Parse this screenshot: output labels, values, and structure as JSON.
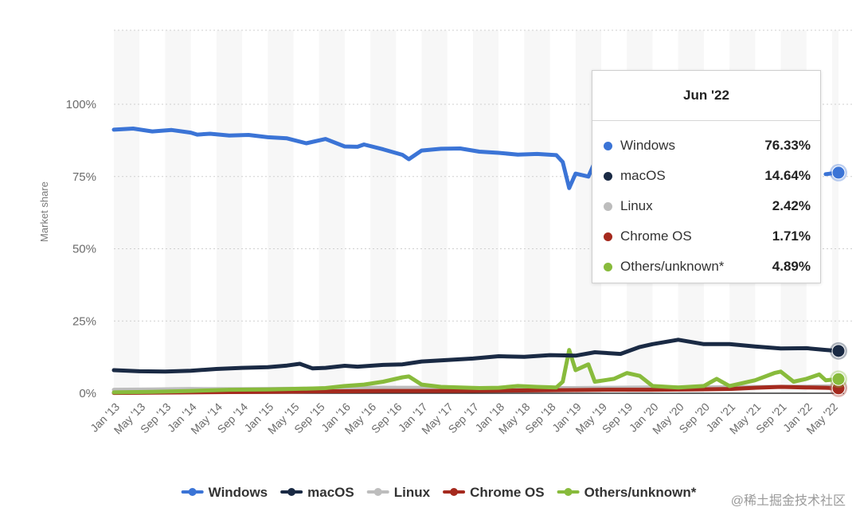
{
  "chart_data": {
    "type": "line",
    "ylabel": "Market share",
    "ylim": [
      0,
      100
    ],
    "y_ticks": [
      "0%",
      "25%",
      "50%",
      "75%",
      "100%"
    ],
    "x_tick_labels": [
      "Jan '13",
      "May '13",
      "Sep '13",
      "Jan '14",
      "May '14",
      "Sep '14",
      "Jan '15",
      "May '15",
      "Sep '15",
      "Jan '16",
      "May '16",
      "Sep '16",
      "Jan '17",
      "May '17",
      "Sep '17",
      "Jan '18",
      "May '18",
      "Sep '18",
      "Jan '19",
      "May '19",
      "Sep '19",
      "Jan '20",
      "May '20",
      "Sep '20",
      "Jan '21",
      "May '21",
      "Sep '21",
      "Jan '22",
      "May '22"
    ],
    "x_start": "Jan 2013",
    "x_end": "Jun 2022",
    "grid": true,
    "legend_position": "bottom",
    "series": [
      {
        "name": "Windows",
        "color": "#3b74d6",
        "points": [
          [
            0,
            91.2
          ],
          [
            3,
            91.6
          ],
          [
            6,
            90.6
          ],
          [
            9,
            91.1
          ],
          [
            12,
            90.2
          ],
          [
            13,
            89.5
          ],
          [
            15,
            89.8
          ],
          [
            18,
            89.2
          ],
          [
            21,
            89.4
          ],
          [
            24,
            88.6
          ],
          [
            27,
            88.2
          ],
          [
            30,
            86.5
          ],
          [
            33,
            88.0
          ],
          [
            36,
            85.4
          ],
          [
            38,
            85.3
          ],
          [
            39,
            86.1
          ],
          [
            42,
            84.4
          ],
          [
            45,
            82.5
          ],
          [
            46,
            81.0
          ],
          [
            48,
            84.0
          ],
          [
            51,
            84.6
          ],
          [
            54,
            84.7
          ],
          [
            57,
            83.6
          ],
          [
            60,
            83.2
          ],
          [
            63,
            82.6
          ],
          [
            66,
            82.8
          ],
          [
            69,
            82.4
          ],
          [
            70,
            80.0
          ],
          [
            71,
            71.0
          ],
          [
            72,
            76.0
          ],
          [
            74,
            75.0
          ],
          [
            75,
            80.0
          ]
        ],
        "points_end": [
          [
            111,
            75.8
          ],
          [
            113,
            76.33
          ]
        ]
      },
      {
        "name": "macOS",
        "color": "#1a2a44",
        "points": [
          [
            0,
            8.0
          ],
          [
            4,
            7.6
          ],
          [
            8,
            7.5
          ],
          [
            12,
            7.8
          ],
          [
            16,
            8.4
          ],
          [
            20,
            8.8
          ],
          [
            24,
            9.0
          ],
          [
            27,
            9.6
          ],
          [
            29,
            10.2
          ],
          [
            31,
            8.6
          ],
          [
            33,
            8.8
          ],
          [
            36,
            9.5
          ],
          [
            38,
            9.2
          ],
          [
            42,
            9.8
          ],
          [
            45,
            10.0
          ],
          [
            48,
            11.0
          ],
          [
            52,
            11.5
          ],
          [
            56,
            12.0
          ],
          [
            60,
            12.8
          ],
          [
            64,
            12.6
          ],
          [
            68,
            13.2
          ],
          [
            72,
            13.0
          ],
          [
            75,
            14.2
          ],
          [
            79,
            13.6
          ],
          [
            82,
            16.0
          ],
          [
            84,
            17.0
          ],
          [
            88,
            18.5
          ],
          [
            92,
            17.0
          ],
          [
            96,
            17.0
          ],
          [
            100,
            16.2
          ],
          [
            104,
            15.5
          ],
          [
            108,
            15.6
          ],
          [
            111,
            15.0
          ],
          [
            113,
            14.64
          ]
        ]
      },
      {
        "name": "Linux",
        "color": "#bdbdbd",
        "points": [
          [
            0,
            1.2
          ],
          [
            6,
            1.3
          ],
          [
            12,
            1.5
          ],
          [
            18,
            1.4
          ],
          [
            24,
            1.5
          ],
          [
            30,
            1.6
          ],
          [
            36,
            1.8
          ],
          [
            42,
            1.9
          ],
          [
            48,
            1.9
          ],
          [
            54,
            1.8
          ],
          [
            60,
            1.7
          ],
          [
            66,
            1.8
          ],
          [
            72,
            1.8
          ],
          [
            78,
            1.9
          ],
          [
            84,
            2.0
          ],
          [
            90,
            2.0
          ],
          [
            96,
            2.1
          ],
          [
            102,
            2.2
          ],
          [
            108,
            2.3
          ],
          [
            113,
            2.42
          ]
        ]
      },
      {
        "name": "Chrome OS",
        "color": "#a52a1e",
        "points": [
          [
            0,
            0.1
          ],
          [
            6,
            0.2
          ],
          [
            12,
            0.3
          ],
          [
            18,
            0.4
          ],
          [
            24,
            0.5
          ],
          [
            30,
            0.6
          ],
          [
            36,
            0.7
          ],
          [
            42,
            0.8
          ],
          [
            48,
            0.8
          ],
          [
            54,
            0.8
          ],
          [
            60,
            0.9
          ],
          [
            66,
            1.0
          ],
          [
            72,
            1.1
          ],
          [
            78,
            1.2
          ],
          [
            84,
            1.2
          ],
          [
            90,
            1.3
          ],
          [
            96,
            1.5
          ],
          [
            100,
            1.9
          ],
          [
            104,
            2.2
          ],
          [
            108,
            2.0
          ],
          [
            111,
            1.9
          ],
          [
            113,
            1.71
          ]
        ]
      },
      {
        "name": "Others/unknown*",
        "color": "#88bb3c",
        "points": [
          [
            0,
            0.3
          ],
          [
            6,
            0.5
          ],
          [
            12,
            0.8
          ],
          [
            15,
            1.0
          ],
          [
            18,
            1.2
          ],
          [
            24,
            1.3
          ],
          [
            30,
            1.6
          ],
          [
            33,
            1.8
          ],
          [
            36,
            2.5
          ],
          [
            39,
            3.0
          ],
          [
            42,
            4.0
          ],
          [
            45,
            5.5
          ],
          [
            46,
            5.8
          ],
          [
            48,
            3.0
          ],
          [
            51,
            2.2
          ],
          [
            54,
            2.0
          ],
          [
            57,
            1.8
          ],
          [
            60,
            1.9
          ],
          [
            63,
            2.5
          ],
          [
            66,
            2.2
          ],
          [
            69,
            2.0
          ],
          [
            70,
            4.0
          ],
          [
            71,
            15.0
          ],
          [
            72,
            8.0
          ],
          [
            73,
            9.0
          ],
          [
            74,
            10.0
          ],
          [
            75,
            4.0
          ],
          [
            78,
            5.0
          ],
          [
            80,
            7.0
          ],
          [
            82,
            6.0
          ],
          [
            84,
            2.5
          ],
          [
            88,
            2.0
          ],
          [
            92,
            2.5
          ],
          [
            94,
            5.0
          ],
          [
            96,
            2.5
          ],
          [
            100,
            4.5
          ],
          [
            103,
            7.0
          ],
          [
            104,
            7.5
          ],
          [
            106,
            4.0
          ],
          [
            108,
            5.0
          ],
          [
            110,
            6.5
          ],
          [
            111,
            4.5
          ],
          [
            113,
            4.89
          ]
        ]
      }
    ]
  },
  "tooltip": {
    "title": "Jun '22",
    "rows": [
      {
        "name": "Windows",
        "value": "76.33%",
        "color": "#3b74d6"
      },
      {
        "name": "macOS",
        "value": "14.64%",
        "color": "#1a2a44"
      },
      {
        "name": "Linux",
        "value": "2.42%",
        "color": "#bdbdbd"
      },
      {
        "name": "Chrome OS",
        "value": "1.71%",
        "color": "#a52a1e"
      },
      {
        "name": "Others/unknown*",
        "value": "4.89%",
        "color": "#88bb3c"
      }
    ]
  },
  "watermark": "@稀土掘金技术社区"
}
